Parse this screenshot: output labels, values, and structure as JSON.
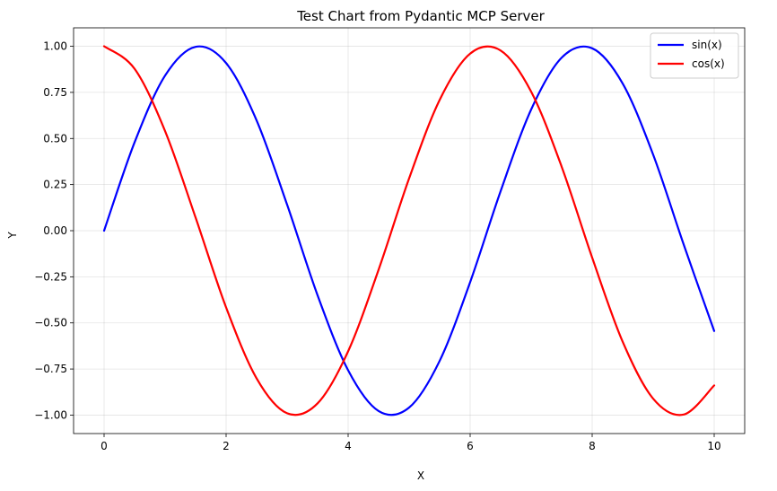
{
  "chart_data": {
    "type": "line",
    "title": "Test Chart from Pydantic MCP Server",
    "xlabel": "X",
    "ylabel": "Y",
    "xlim": [
      -0.5,
      10.5
    ],
    "ylim": [
      -1.1,
      1.1
    ],
    "grid": true,
    "legend_position": "top-right",
    "x_ticks": [
      0,
      2,
      4,
      6,
      8,
      10
    ],
    "x_tick_labels": [
      "0",
      "2",
      "4",
      "6",
      "8",
      "10"
    ],
    "y_ticks": [
      -1.0,
      -0.75,
      -0.5,
      -0.25,
      0.0,
      0.25,
      0.5,
      0.75,
      1.0
    ],
    "y_tick_labels": [
      "−1.00",
      "−0.75",
      "−0.50",
      "−0.25",
      "0.00",
      "0.25",
      "0.50",
      "0.75",
      "1.00"
    ],
    "x": [
      0,
      0.5,
      1,
      1.5,
      2,
      2.5,
      3,
      3.5,
      4,
      4.5,
      5,
      5.5,
      6,
      6.5,
      7,
      7.5,
      8,
      8.5,
      9,
      9.5,
      10
    ],
    "series": [
      {
        "name": "sin(x)",
        "color": "#0000ff",
        "values": [
          0.0,
          0.479,
          0.841,
          0.997,
          0.909,
          0.598,
          0.141,
          -0.351,
          -0.757,
          -0.978,
          -0.959,
          -0.706,
          -0.279,
          0.215,
          0.657,
          0.938,
          0.989,
          0.798,
          0.412,
          -0.075,
          -0.544
        ]
      },
      {
        "name": "cos(x)",
        "color": "#ff0000",
        "values": [
          1.0,
          0.878,
          0.54,
          0.071,
          -0.416,
          -0.801,
          -0.99,
          -0.936,
          -0.654,
          -0.211,
          0.284,
          0.709,
          0.96,
          0.977,
          0.754,
          0.347,
          -0.146,
          -0.602,
          -0.911,
          -0.997,
          -0.839
        ]
      }
    ]
  }
}
